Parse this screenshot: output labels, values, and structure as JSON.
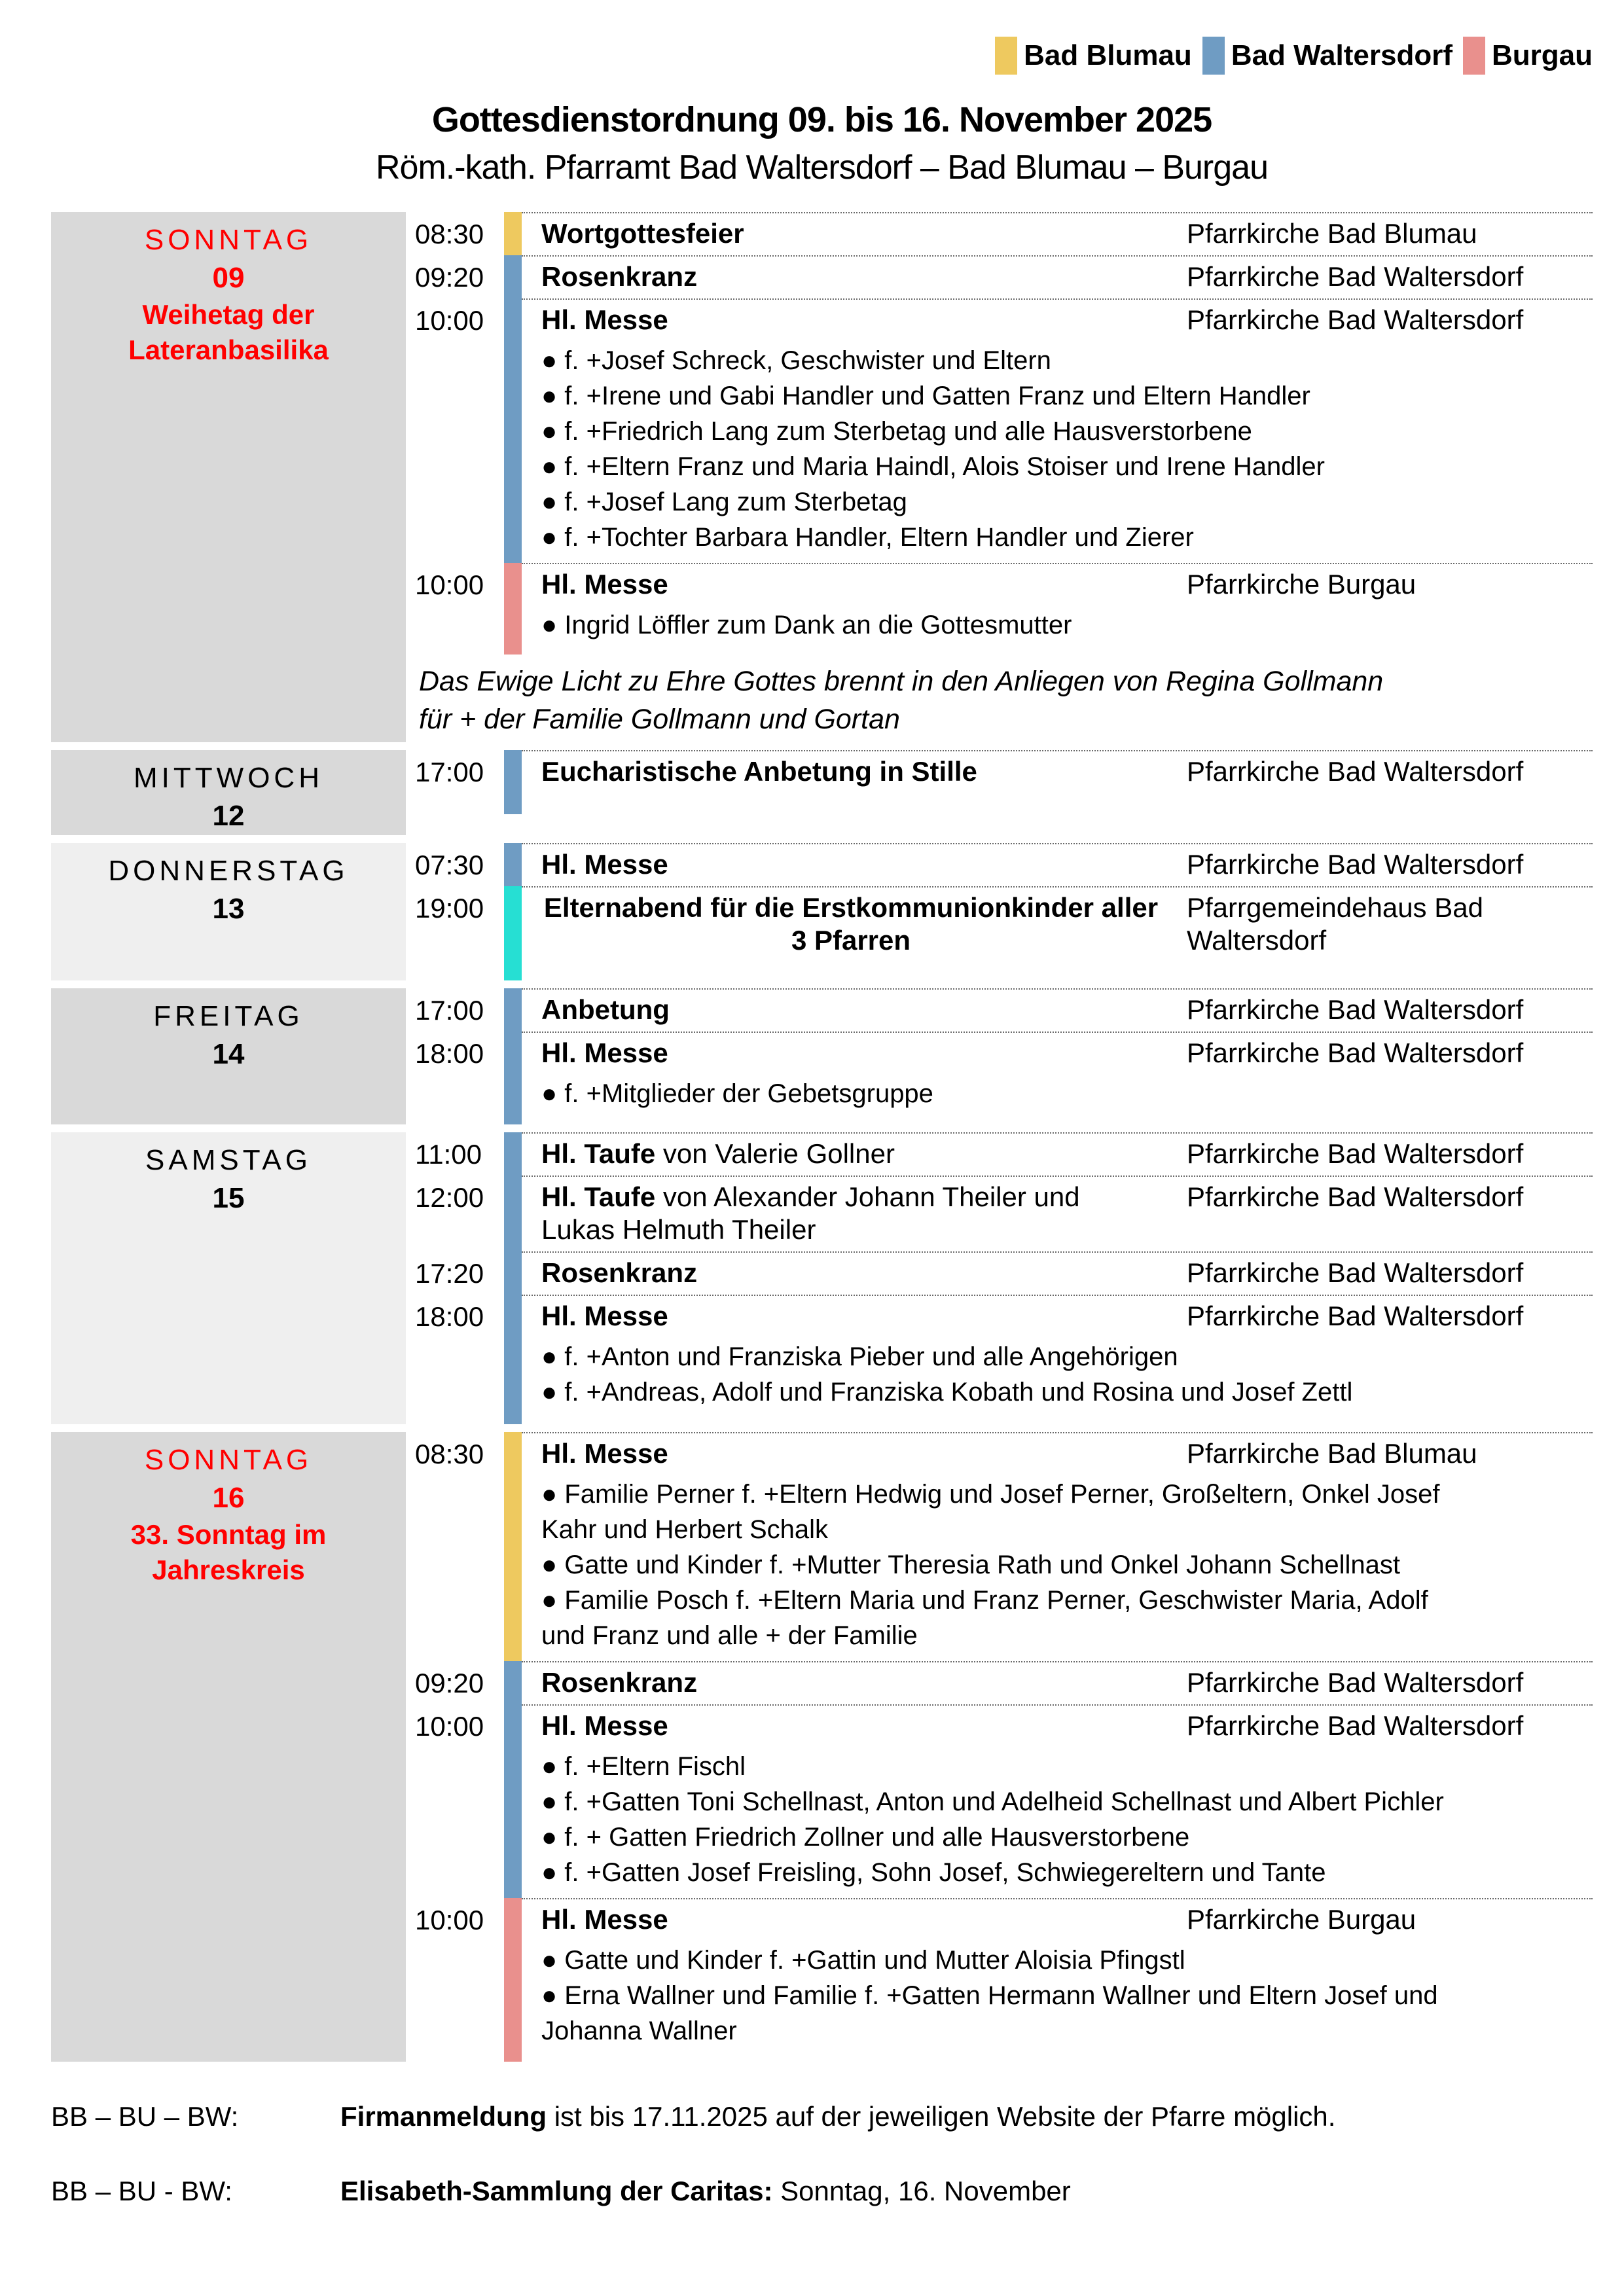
{
  "colors": {
    "yellow": "#EEC95F",
    "blue": "#6F9CC3",
    "salmon": "#E9908D",
    "cyan": "#26DFD3",
    "red": "#FF0000",
    "day_dark": "#D9D9D9",
    "day_light": "#EFEFEF"
  },
  "legend": {
    "items": [
      {
        "label": "Bad Blumau",
        "color": "yellow"
      },
      {
        "label": "Bad Waltersdorf",
        "color": "blue"
      },
      {
        "label": "Burgau",
        "color": "salmon"
      }
    ]
  },
  "header": {
    "title": "Gottesdienstordnung 09. bis 16. November 2025",
    "subtitle": "Röm.-kath. Pfarramt Bad Waltersdorf – Bad Blumau – Burgau"
  },
  "days": [
    {
      "name": "SONNTAG",
      "number": "09",
      "feast_lines": [
        "Weihetag der",
        "Lateranbasilika"
      ],
      "accent": "red",
      "shade": "dark",
      "events": [
        {
          "time": "08:30",
          "color": "yellow",
          "title": "Wortgottesfeier",
          "rest": "",
          "location": "Pfarrkirche Bad Blumau",
          "bullets": []
        },
        {
          "time": "09:20",
          "color": "blue",
          "title": "Rosenkranz",
          "rest": "",
          "location": "Pfarrkirche Bad Waltersdorf",
          "bullets": []
        },
        {
          "time": "10:00",
          "color": "blue",
          "title": "Hl. Messe",
          "rest": "",
          "location": "Pfarrkirche Bad Waltersdorf",
          "bullets": [
            "f. +Josef Schreck, Geschwister und Eltern",
            "f. +Irene und Gabi Handler und Gatten Franz und Eltern Handler",
            "f. +Friedrich Lang zum Sterbetag und alle Hausverstorbene",
            "f. +Eltern Franz und Maria Haindl, Alois Stoiser und Irene Handler",
            "f. +Josef Lang zum Sterbetag",
            "f. +Tochter Barbara Handler, Eltern Handler und Zierer"
          ]
        },
        {
          "time": "10:00",
          "color": "salmon",
          "title": "Hl. Messe",
          "rest": "",
          "location": "Pfarrkirche Burgau",
          "pad": 14,
          "bullets": [
            "Ingrid Löffler zum Dank an die Gottesmutter"
          ]
        }
      ],
      "note": "Das Ewige Licht zu Ehre Gottes brennt in den Anliegen von Regina Gollmann für + der Familie Gollmann und Gortan"
    },
    {
      "name": "MITTWOCH",
      "number": "12",
      "feast_lines": [],
      "accent": "black",
      "shade": "dark",
      "events": [
        {
          "time": "17:00",
          "color": "blue",
          "title": "Eucharistische Anbetung in Stille",
          "rest": "",
          "location": "Pfarrkirche Bad Waltersdorf",
          "pad": 40,
          "bullets": []
        }
      ],
      "note": ""
    },
    {
      "name": "DONNERSTAG",
      "number": "13",
      "feast_lines": [],
      "accent": "black",
      "shade": "light",
      "events": [
        {
          "time": "07:30",
          "color": "blue",
          "title": "Hl. Messe",
          "rest": "",
          "location": "Pfarrkirche Bad Waltersdorf",
          "bullets": []
        },
        {
          "time": "19:00",
          "color": "cyan",
          "title": "Elternabend für die Erstkommunionkinder aller 3 Pfarren",
          "rest": "",
          "centered": true,
          "location": "Pfarrgemeindehaus Bad Waltersdorf",
          "pad": 36,
          "bullets": []
        }
      ],
      "note": ""
    },
    {
      "name": "FREITAG",
      "number": "14",
      "feast_lines": [],
      "accent": "black",
      "shade": "dark",
      "events": [
        {
          "time": "17:00",
          "color": "blue",
          "title": "Anbetung",
          "rest": "",
          "location": "Pfarrkirche Bad Waltersdorf",
          "bullets": []
        },
        {
          "time": "18:00",
          "color": "blue",
          "title": "Hl. Messe",
          "rest": "",
          "location": "Pfarrkirche Bad Waltersdorf",
          "pad": 16,
          "bullets": [
            "f. +Mitglieder der Gebetsgruppe"
          ]
        }
      ],
      "note": ""
    },
    {
      "name": "SAMSTAG",
      "number": "15",
      "feast_lines": [],
      "accent": "black",
      "shade": "light",
      "events": [
        {
          "time": "11:00",
          "color": "blue",
          "title": "Hl. Taufe",
          "rest": " von Valerie Gollner",
          "location": "Pfarrkirche Bad Waltersdorf",
          "bullets": []
        },
        {
          "time": "12:00",
          "color": "blue",
          "title": "Hl. Taufe",
          "rest": " von Alexander Johann Theiler und Lukas Helmuth Theiler",
          "location": "Pfarrkirche Bad Waltersdorf",
          "bullets": []
        },
        {
          "time": "17:20",
          "color": "blue",
          "title": "Rosenkranz",
          "rest": "",
          "location": "Pfarrkirche Bad Waltersdorf",
          "bullets": []
        },
        {
          "time": "18:00",
          "color": "blue",
          "title": "Hl. Messe",
          "rest": "",
          "location": "Pfarrkirche Bad Waltersdorf",
          "pad": 18,
          "bullets": [
            "f. +Anton und Franziska Pieber und alle Angehörigen",
            "f. +Andreas, Adolf und Franziska Kobath und Rosina und Josef Zettl"
          ]
        }
      ],
      "note": ""
    },
    {
      "name": "SONNTAG",
      "number": "16",
      "feast_lines": [
        "33. Sonntag im",
        "Jahreskreis"
      ],
      "accent": "red",
      "shade": "dark",
      "events": [
        {
          "time": "08:30",
          "color": "yellow",
          "title": "Hl. Messe",
          "rest": "",
          "location": "Pfarrkirche Bad Blumau",
          "bullets": [
            "Familie Perner f. +Eltern Hedwig und Josef Perner, Großeltern, Onkel Josef Kahr und Herbert Schalk",
            "Gatte und Kinder f. +Mutter Theresia Rath und Onkel Johann Schellnast",
            "Familie Posch f. +Eltern Maria und Franz Perner, Geschwister Maria, Adolf und Franz und alle + der Familie"
          ]
        },
        {
          "time": "09:20",
          "color": "blue",
          "title": "Rosenkranz",
          "rest": "",
          "location": "Pfarrkirche Bad Waltersdorf",
          "bullets": []
        },
        {
          "time": "10:00",
          "color": "blue",
          "title": "Hl. Messe",
          "rest": "",
          "location": "Pfarrkirche Bad Waltersdorf",
          "bullets": [
            "f. +Eltern Fischl",
            "f. +Gatten Toni Schellnast, Anton und Adelheid Schellnast und Albert Pichler",
            "f. + Gatten Friedrich Zollner und alle Hausverstorbene",
            "f. +Gatten Josef Freisling, Sohn Josef, Schwiegereltern und Tante"
          ]
        },
        {
          "time": "10:00",
          "color": "salmon",
          "title": "Hl. Messe",
          "rest": "",
          "location": "Pfarrkirche Burgau",
          "pad": 16,
          "bullets": [
            "Gatte und Kinder f. +Gattin und Mutter Aloisia Pfingstl",
            "Erna Wallner und Familie f. +Gatten Hermann Wallner und Eltern Josef und Johanna Wallner"
          ]
        }
      ],
      "note": ""
    }
  ],
  "footer_notes": [
    {
      "label": "BB – BU – BW:",
      "bold": "Firmanmeldung",
      "rest": " ist bis 17.11.2025 auf der jeweiligen Website der Pfarre möglich."
    },
    {
      "label": "BB – BU - BW:",
      "bold": "Elisabeth-Sammlung der Caritas:",
      "rest": " Sonntag, 16. November"
    }
  ],
  "bullet_glyph": "●"
}
